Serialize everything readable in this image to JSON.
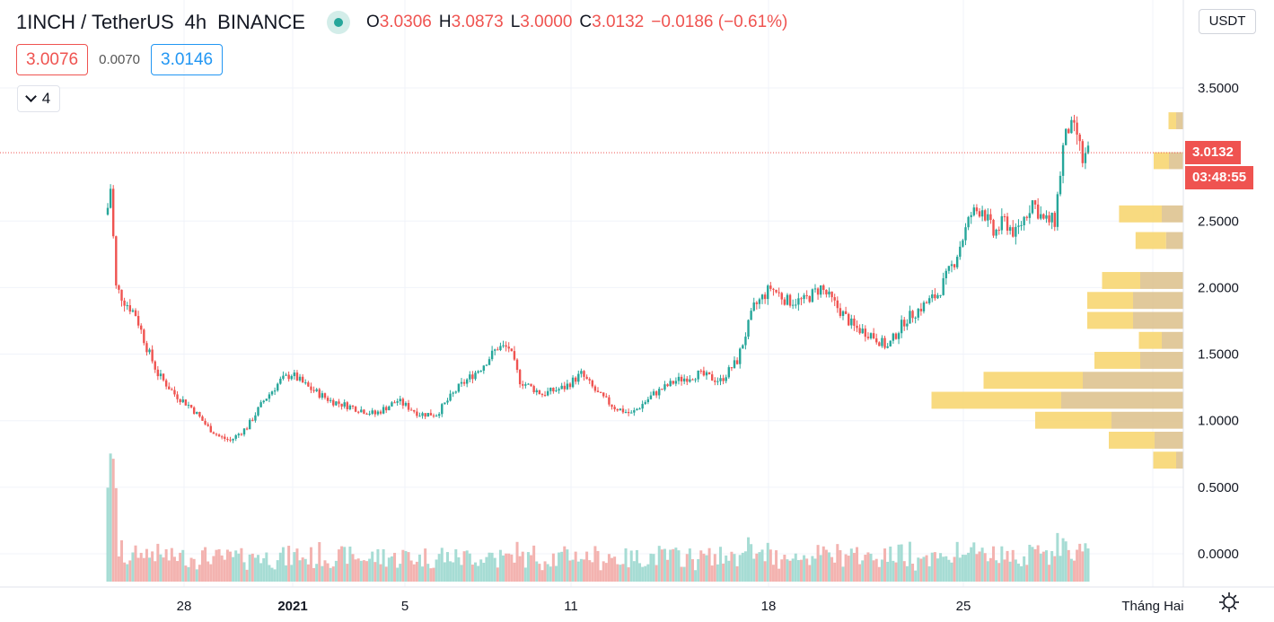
{
  "header": {
    "symbol": "1INCH / TetherUS",
    "interval": "4h",
    "exchange": "BINANCE",
    "open_label": "O",
    "open": "3.0306",
    "high_label": "H",
    "high": "3.0873",
    "low_label": "L",
    "low": "3.0000",
    "close_label": "C",
    "close": "3.0132",
    "change": "−0.0186 (−0.61%)"
  },
  "quote": {
    "bid": "3.0076",
    "spread": "0.0070",
    "ask": "3.0146"
  },
  "indicators": {
    "count": "4"
  },
  "axis": {
    "currency": "USDT",
    "last_price": "3.0132",
    "countdown": "03:48:55"
  },
  "colors": {
    "up": "#26a69a",
    "down": "#ef5350",
    "vol_up": "#a6dcd4",
    "vol_down": "#f3b3b0",
    "profile_up": "#f7d36a",
    "profile_down": "#dcc08a"
  },
  "chart_data": {
    "type": "candlestick",
    "y_ticks": [
      "3.5000",
      "2.5000",
      "2.0000",
      "1.5000",
      "1.0000",
      "0.5000",
      "0.0000"
    ],
    "ylim": [
      -0.2,
      4.1
    ],
    "x_ticks": [
      "28",
      "2021",
      "5",
      "11",
      "18",
      "25",
      "Tháng Hai"
    ],
    "close_path": [
      [
        0,
        2.6
      ],
      [
        1,
        2.75
      ],
      [
        3,
        2.0
      ],
      [
        6,
        1.9
      ],
      [
        10,
        1.8
      ],
      [
        14,
        1.55
      ],
      [
        18,
        1.35
      ],
      [
        24,
        1.2
      ],
      [
        30,
        1.1
      ],
      [
        36,
        0.95
      ],
      [
        40,
        0.88
      ],
      [
        44,
        0.85
      ],
      [
        50,
        0.95
      ],
      [
        56,
        1.15
      ],
      [
        62,
        1.3
      ],
      [
        66,
        1.35
      ],
      [
        72,
        1.25
      ],
      [
        80,
        1.15
      ],
      [
        88,
        1.1
      ],
      [
        96,
        1.05
      ],
      [
        104,
        1.15
      ],
      [
        112,
        1.05
      ],
      [
        118,
        1.05
      ],
      [
        126,
        1.25
      ],
      [
        134,
        1.4
      ],
      [
        140,
        1.55
      ],
      [
        144,
        1.55
      ],
      [
        148,
        1.3
      ],
      [
        156,
        1.2
      ],
      [
        164,
        1.25
      ],
      [
        170,
        1.35
      ],
      [
        176,
        1.2
      ],
      [
        182,
        1.1
      ],
      [
        188,
        1.05
      ],
      [
        196,
        1.2
      ],
      [
        204,
        1.3
      ],
      [
        212,
        1.35
      ],
      [
        220,
        1.3
      ],
      [
        226,
        1.45
      ],
      [
        232,
        1.85
      ],
      [
        238,
        2.0
      ],
      [
        244,
        1.9
      ],
      [
        250,
        1.9
      ],
      [
        256,
        2.0
      ],
      [
        262,
        1.85
      ],
      [
        268,
        1.7
      ],
      [
        274,
        1.65
      ],
      [
        280,
        1.55
      ],
      [
        286,
        1.75
      ],
      [
        292,
        1.85
      ],
      [
        298,
        1.95
      ],
      [
        304,
        2.2
      ],
      [
        310,
        2.55
      ],
      [
        314,
        2.6
      ],
      [
        318,
        2.4
      ],
      [
        322,
        2.5
      ],
      [
        326,
        2.4
      ],
      [
        332,
        2.65
      ],
      [
        336,
        2.5
      ],
      [
        340,
        2.5
      ],
      [
        343,
        3.05
      ],
      [
        345,
        3.2
      ],
      [
        348,
        3.15
      ],
      [
        350,
        2.95
      ],
      [
        352,
        3.01
      ]
    ],
    "volume_profile": [
      {
        "price": 3.25,
        "up": 0.05,
        "down": 0.05
      },
      {
        "price": 2.95,
        "up": 0.1,
        "down": 0.1
      },
      {
        "price": 2.55,
        "up": 0.28,
        "down": 0.15
      },
      {
        "price": 2.35,
        "up": 0.2,
        "down": 0.12
      },
      {
        "price": 2.05,
        "up": 0.25,
        "down": 0.3
      },
      {
        "price": 1.9,
        "up": 0.3,
        "down": 0.35
      },
      {
        "price": 1.75,
        "up": 0.3,
        "down": 0.35
      },
      {
        "price": 1.6,
        "up": 0.15,
        "down": 0.15
      },
      {
        "price": 1.45,
        "up": 0.3,
        "down": 0.3
      },
      {
        "price": 1.3,
        "up": 0.65,
        "down": 0.7
      },
      {
        "price": 1.15,
        "up": 0.85,
        "down": 0.85
      },
      {
        "price": 1.0,
        "up": 0.5,
        "down": 0.5
      },
      {
        "price": 0.85,
        "up": 0.3,
        "down": 0.2
      },
      {
        "price": 0.7,
        "up": 0.15,
        "down": 0.05
      }
    ]
  }
}
